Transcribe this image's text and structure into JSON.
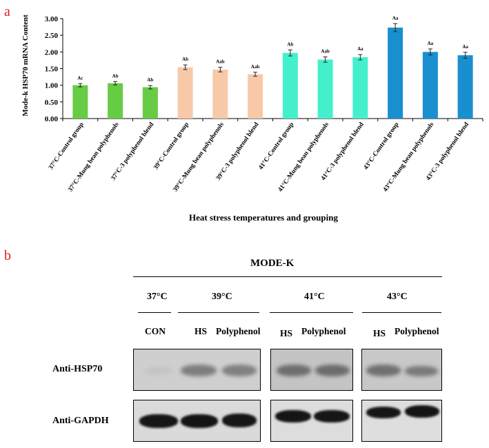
{
  "panel_labels": {
    "a": "a",
    "b": "b"
  },
  "chart_data": {
    "type": "bar",
    "title": "",
    "ylabel": "Mode-k  HSP70 mRNA Content",
    "xlabel": "Heat stress temperatures and grouping",
    "ylim": [
      0,
      3.0
    ],
    "yticks": [
      "0.00",
      "0.50",
      "1.00",
      "1.50",
      "2.00",
      "2.50",
      "3.00"
    ],
    "grid": false,
    "categories": [
      "37°C-Control group",
      "37°C-Mung bean polyphenols",
      "37°C-3 polyphenol blend",
      "39°C-Control group",
      "39°C-Mung bean polyphenols",
      "39°C-3 polyphenol blend",
      "41°C-Control group",
      "41°C-Mung bean polyphenols",
      "41°C-3 polyphenol blend",
      "43°C-Control group",
      "43°C-Mung bean polyphenols",
      "43°C-3 polyphenol blend"
    ],
    "values": [
      1.0,
      1.06,
      0.94,
      1.54,
      1.47,
      1.33,
      1.97,
      1.77,
      1.84,
      2.73,
      2.0,
      1.9
    ],
    "errors": [
      0.05,
      0.05,
      0.05,
      0.07,
      0.07,
      0.06,
      0.09,
      0.08,
      0.08,
      0.12,
      0.09,
      0.09
    ],
    "significance_labels": [
      "Ac",
      "Ab",
      "Ab",
      "Ab",
      "Aab",
      "Aab",
      "Ab",
      "Aab",
      "Aa",
      "Aa",
      "Aa",
      "Aa"
    ],
    "colors": [
      "#66cc44",
      "#66cc44",
      "#66cc44",
      "#f8c9a8",
      "#f8c9a8",
      "#f8c9a8",
      "#44f0cc",
      "#44f0cc",
      "#44f0cc",
      "#1a8fd0",
      "#1a8fd0",
      "#1a8fd0"
    ]
  },
  "western_blot": {
    "cell_line": "MODE-K",
    "temperatures": [
      "37°C",
      "39°C",
      "41°C",
      "43°C"
    ],
    "lanes": [
      "CON",
      "HS",
      "Polyphenol",
      "HS",
      "Polyphenol",
      "HS",
      "Polyphenol"
    ],
    "rows": [
      "Anti-HSP70",
      "Anti-GAPDH"
    ]
  }
}
